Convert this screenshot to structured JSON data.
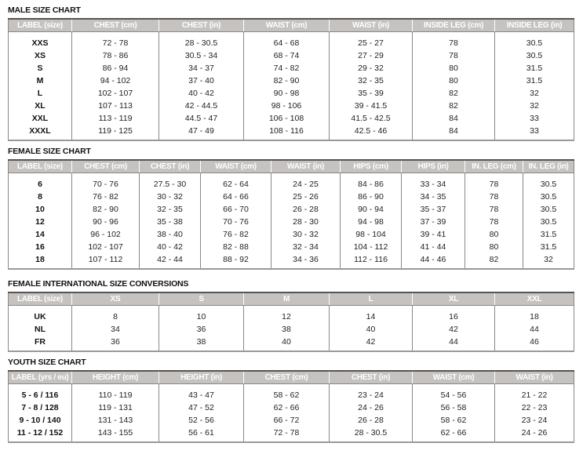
{
  "tables": [
    {
      "id": "male",
      "title": "MALE SIZE CHART",
      "headers": [
        "LABEL (size)",
        "CHEST (cm)",
        "CHEST (in)",
        "WAIST (cm)",
        "WAIST (in)",
        "INSIDE LEG (cm)",
        "INSIDE LEG (in)"
      ],
      "rows": [
        [
          "XXS",
          "72 - 78",
          "28 - 30.5",
          "64 - 68",
          "25 - 27",
          "78",
          "30.5"
        ],
        [
          "XS",
          "78 - 86",
          "30.5 - 34",
          "68 - 74",
          "27 - 29",
          "78",
          "30.5"
        ],
        [
          "S",
          "86 - 94",
          "34 - 37",
          "74 - 82",
          "29 - 32",
          "80",
          "31.5"
        ],
        [
          "M",
          "94 - 102",
          "37 - 40",
          "82 - 90",
          "32 - 35",
          "80",
          "31.5"
        ],
        [
          "L",
          "102 - 107",
          "40 - 42",
          "90 - 98",
          "35 - 39",
          "82",
          "32"
        ],
        [
          "XL",
          "107 - 113",
          "42 - 44.5",
          "98 - 106",
          "39 - 41.5",
          "82",
          "32"
        ],
        [
          "XXL",
          "113 - 119",
          "44.5 - 47",
          "106 - 108",
          "41.5 - 42.5",
          "84",
          "33"
        ],
        [
          "XXXL",
          "119 - 125",
          "47 - 49",
          "108 - 116",
          "42.5 - 46",
          "84",
          "33"
        ]
      ]
    },
    {
      "id": "female",
      "title": "FEMALE SIZE CHART",
      "headers": [
        "LABEL (size)",
        "CHEST (cm)",
        "CHEST (in)",
        "WAIST (cm)",
        "WAIST (in)",
        "HIPS (cm)",
        "HIPS (in)",
        "IN. LEG (cm)",
        "IN. LEG (in)"
      ],
      "rows": [
        [
          "6",
          "70 - 76",
          "27.5 - 30",
          "62 - 64",
          "24 - 25",
          "84 - 86",
          "33 - 34",
          "78",
          "30.5"
        ],
        [
          "8",
          "76 - 82",
          "30 - 32",
          "64 - 66",
          "25 - 26",
          "86 - 90",
          "34 - 35",
          "78",
          "30.5"
        ],
        [
          "10",
          "82 - 90",
          "32 - 35",
          "66 - 70",
          "26 - 28",
          "90 - 94",
          "35 - 37",
          "78",
          "30.5"
        ],
        [
          "12",
          "90 - 96",
          "35 - 38",
          "70 - 76",
          "28 - 30",
          "94 - 98",
          "37 - 39",
          "78",
          "30.5"
        ],
        [
          "14",
          "96 - 102",
          "38 - 40",
          "76 - 82",
          "30 - 32",
          "98 - 104",
          "39 - 41",
          "80",
          "31.5"
        ],
        [
          "16",
          "102 - 107",
          "40 - 42",
          "82 - 88",
          "32 - 34",
          "104 - 112",
          "41 - 44",
          "80",
          "31.5"
        ],
        [
          "18",
          "107 - 112",
          "42 - 44",
          "88 - 92",
          "34 - 36",
          "112 - 116",
          "44 - 46",
          "82",
          "32"
        ]
      ]
    },
    {
      "id": "intl",
      "title": "FEMALE INTERNATIONAL SIZE CONVERSIONS",
      "headers": [
        "LABEL (size)",
        "XS",
        "S",
        "M",
        "L",
        "XL",
        "XXL"
      ],
      "rows": [
        [
          "UK",
          "8",
          "10",
          "12",
          "14",
          "16",
          "18"
        ],
        [
          "NL",
          "34",
          "36",
          "38",
          "40",
          "42",
          "44"
        ],
        [
          "FR",
          "36",
          "38",
          "40",
          "42",
          "44",
          "46"
        ]
      ]
    },
    {
      "id": "youth",
      "title": "YOUTH SIZE CHART",
      "headers": [
        "LABEL (yrs / eu)",
        "HEIGHT (cm)",
        "HEIGHT (in)",
        "CHEST (cm)",
        "CHEST (in)",
        "WAIST (cm)",
        "WAIST (in)"
      ],
      "rows": [
        [
          "5 - 6 / 116",
          "110 - 119",
          "43 - 47",
          "58 - 62",
          "23 - 24",
          "54 - 56",
          "21 - 22"
        ],
        [
          "7 - 8 / 128",
          "119 - 131",
          "47 - 52",
          "62 - 66",
          "24 - 26",
          "56 - 58",
          "22 - 23"
        ],
        [
          "9 - 10 / 140",
          "131 - 143",
          "52 - 56",
          "66 - 72",
          "26 - 28",
          "58 - 62",
          "23 - 24"
        ],
        [
          "11 - 12 / 152",
          "143 - 155",
          "56 - 61",
          "72 - 78",
          "28 - 30.5",
          "62 - 66",
          "24 - 26"
        ]
      ]
    }
  ],
  "colors": {
    "header_bg": "#c5c2bf",
    "header_text": "#ffffff"
  }
}
